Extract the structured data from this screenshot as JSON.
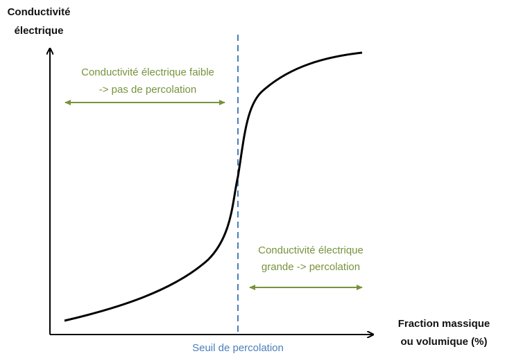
{
  "y_axis": {
    "label_lines": [
      "Conductivité",
      "électrique"
    ]
  },
  "x_axis": {
    "label_lines": [
      "Fraction massique",
      "ou volumique (%)"
    ]
  },
  "threshold": {
    "label": "Seuil de percolation"
  },
  "regions": [
    {
      "lines": [
        "Conductivité électrique faible",
        "-> pas de percolation"
      ]
    },
    {
      "lines": [
        "Conductivité électrique",
        "grande -> percolation"
      ]
    }
  ]
}
